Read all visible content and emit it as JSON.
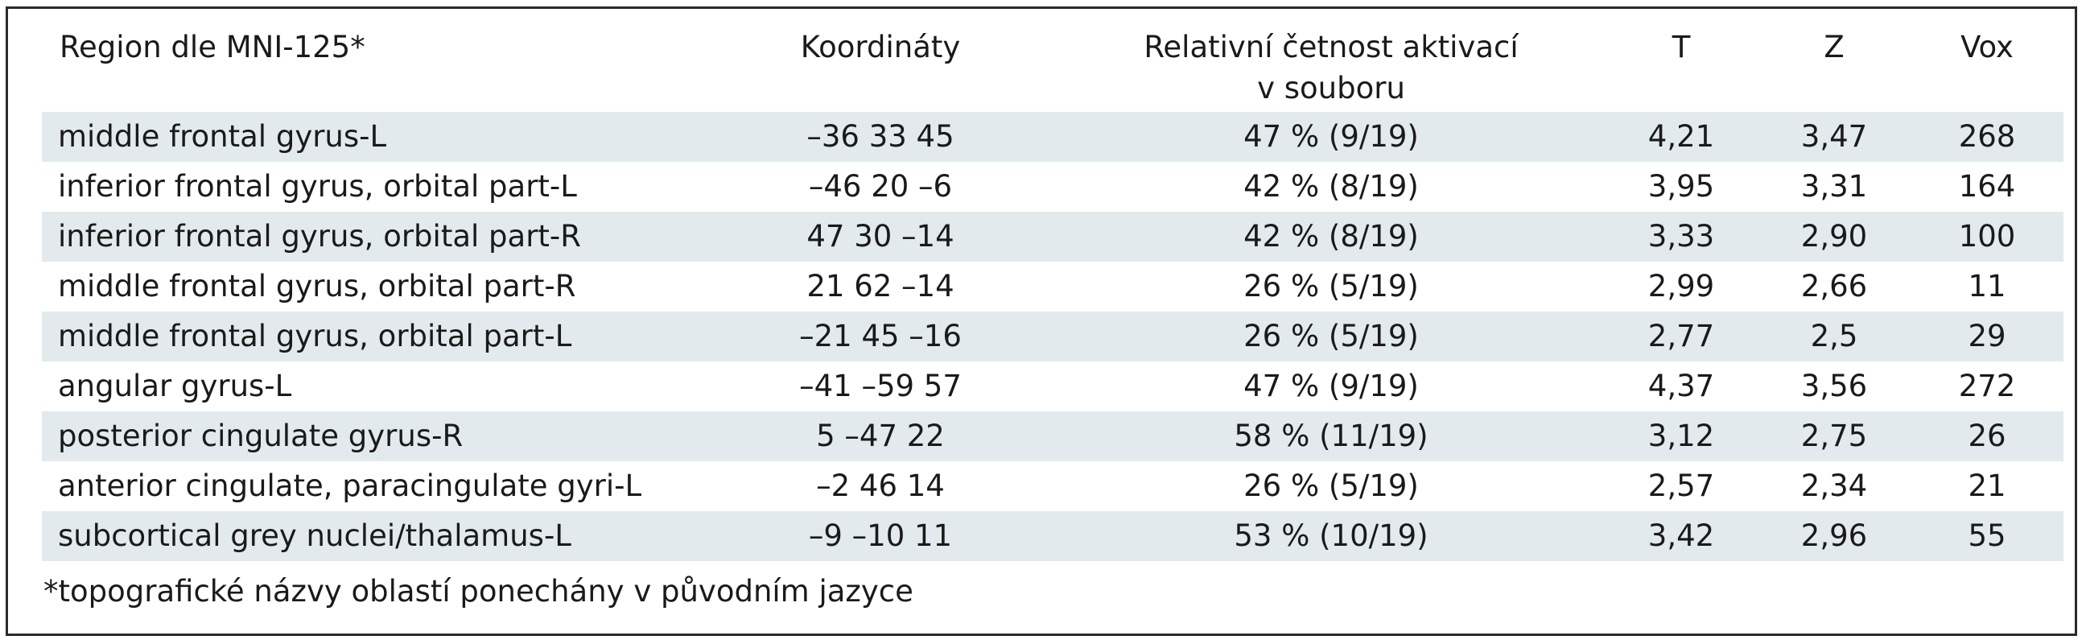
{
  "table": {
    "headers": {
      "region": "Region dle MNI-125*",
      "coordinates": "Koordináty",
      "relative_line1": "Relativní četnost aktivací",
      "relative_line2": "v souboru",
      "t": "T",
      "z": "Z",
      "vox": "Vox"
    },
    "rows": [
      {
        "region": "middle frontal gyrus-L",
        "coordinates": "–36 33 45",
        "relative": "47 % (9/19)",
        "t": "4,21",
        "z": "3,47",
        "vox": "268"
      },
      {
        "region": "inferior frontal gyrus, orbital part-L",
        "coordinates": "–46 20 –6",
        "relative": "42 % (8/19)",
        "t": "3,95",
        "z": "3,31",
        "vox": "164"
      },
      {
        "region": "inferior frontal gyrus, orbital part-R",
        "coordinates": "47 30 –14",
        "relative": "42 % (8/19)",
        "t": "3,33",
        "z": "2,90",
        "vox": "100"
      },
      {
        "region": "middle frontal gyrus, orbital part-R",
        "coordinates": "21 62 –14",
        "relative": "26 % (5/19)",
        "t": "2,99",
        "z": "2,66",
        "vox": "11"
      },
      {
        "region": "middle frontal gyrus, orbital part-L",
        "coordinates": "–21 45 –16",
        "relative": "26 % (5/19)",
        "t": "2,77",
        "z": "2,5",
        "vox": "29"
      },
      {
        "region": "angular gyrus-L",
        "coordinates": "–41 –59 57",
        "relative": "47 % (9/19)",
        "t": "4,37",
        "z": "3,56",
        "vox": "272"
      },
      {
        "region": "posterior cingulate gyrus-R",
        "coordinates": "5 –47 22",
        "relative": "58 % (11/19)",
        "t": "3,12",
        "z": "2,75",
        "vox": "26"
      },
      {
        "region": "anterior cingulate, paracingulate gyri-L",
        "coordinates": "–2 46 14",
        "relative": "26 % (5/19)",
        "t": "2,57",
        "z": "2,34",
        "vox": "21"
      },
      {
        "region": "subcortical grey nuclei/thalamus-L",
        "coordinates": "–9 –10 11",
        "relative": "53 % (10/19)",
        "t": "3,42",
        "z": "2,96",
        "vox": "55"
      }
    ],
    "footnote": "*topografické názvy oblastí ponechány v původním jazyce"
  },
  "colors": {
    "shaded_row": "#e2eaed",
    "border": "#2a2a2a",
    "text": "#1a1a1a"
  }
}
